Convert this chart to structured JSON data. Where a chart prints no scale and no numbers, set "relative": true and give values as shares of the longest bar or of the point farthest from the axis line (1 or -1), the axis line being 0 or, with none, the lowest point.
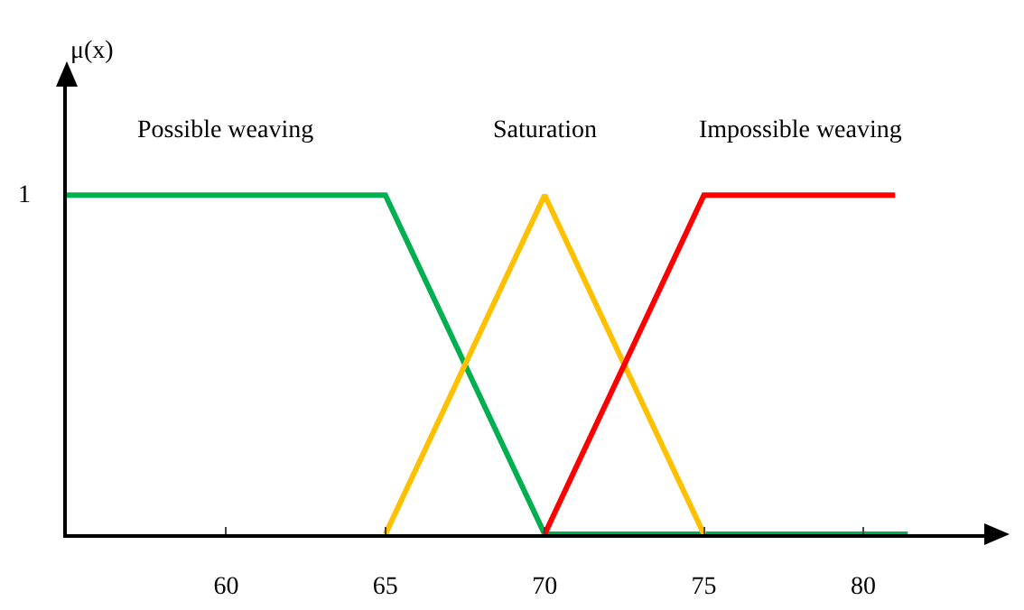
{
  "chart_data": {
    "type": "line",
    "relative": true,
    "xlim": [
      55,
      83.8
    ],
    "xticks": [
      60,
      65,
      70,
      75,
      80
    ],
    "grid": false,
    "legend": false,
    "marker": "none",
    "line_style": "solid",
    "annotations": [
      "μ(x)",
      "1"
    ],
    "series": [
      {
        "name": "Possible weaving",
        "color": "#00b050",
        "x": [
          55,
          65,
          70,
          81.4
        ],
        "values": [
          1,
          1,
          0,
          0
        ]
      },
      {
        "name": "Saturation",
        "color": "#ffc000",
        "x": [
          65,
          70,
          75
        ],
        "values": [
          0,
          1,
          0
        ]
      },
      {
        "name": "Impossible weaving",
        "color": "#ff0000",
        "x": [
          70,
          75,
          81
        ],
        "values": [
          0,
          1,
          1
        ]
      }
    ]
  }
}
